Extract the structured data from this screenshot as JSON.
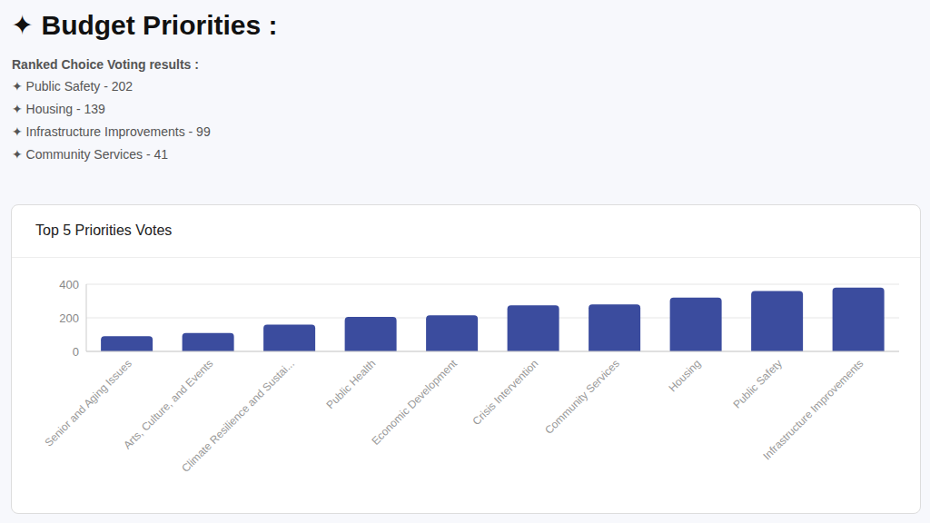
{
  "header": {
    "title": "✦ Budget Priorities :"
  },
  "ranked_choice": {
    "title": "Ranked Choice Voting results :",
    "items": [
      "✦ Public Safety - 202",
      "✦ Housing - 139",
      "✦ Infrastructure Improvements - 99",
      "✦ Community Services - 41"
    ]
  },
  "chart_data": {
    "type": "bar",
    "title": "Top 5 Priorities Votes",
    "categories": [
      "Senior and Aging Issues",
      "Arts, Culture, and Events",
      "Climate Resilience and Sustai...",
      "Public Health",
      "Economic Development",
      "Crisis Intervention",
      "Community Services",
      "Housing",
      "Public Safety",
      "Infrastructure Improvements"
    ],
    "values": [
      90,
      110,
      160,
      205,
      215,
      275,
      280,
      320,
      360,
      380
    ],
    "color": "#3b4c9e",
    "ylim": [
      0,
      400
    ],
    "yticks": [
      0,
      200,
      400
    ],
    "grid": true
  }
}
